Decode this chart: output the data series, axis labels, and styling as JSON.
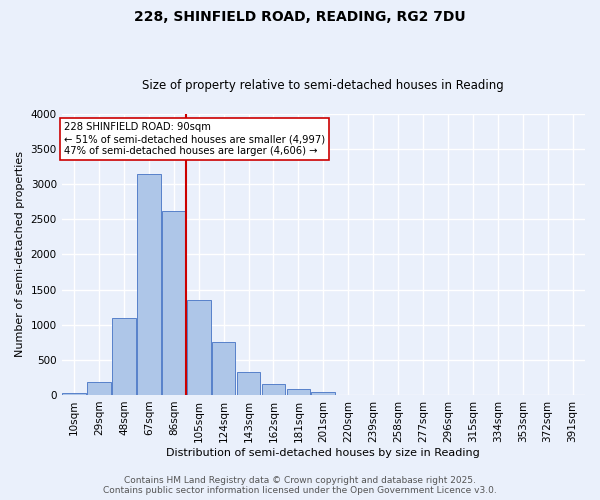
{
  "title1": "228, SHINFIELD ROAD, READING, RG2 7DU",
  "title2": "Size of property relative to semi-detached houses in Reading",
  "xlabel": "Distribution of semi-detached houses by size in Reading",
  "ylabel": "Number of semi-detached properties",
  "bar_labels": [
    "10sqm",
    "29sqm",
    "48sqm",
    "67sqm",
    "86sqm",
    "105sqm",
    "124sqm",
    "143sqm",
    "162sqm",
    "181sqm",
    "201sqm",
    "220sqm",
    "239sqm",
    "258sqm",
    "277sqm",
    "296sqm",
    "315sqm",
    "334sqm",
    "353sqm",
    "372sqm",
    "391sqm"
  ],
  "bar_values": [
    30,
    190,
    1090,
    3150,
    2620,
    1350,
    750,
    320,
    155,
    90,
    45,
    0,
    0,
    0,
    0,
    0,
    0,
    0,
    0,
    0,
    0
  ],
  "bar_color": "#aec6e8",
  "bar_edge_color": "#4472c4",
  "background_color": "#eaf0fb",
  "grid_color": "#ffffff",
  "vline_x": 4.5,
  "vline_color": "#cc0000",
  "annotation_title": "228 SHINFIELD ROAD: 90sqm",
  "annotation_line1": "← 51% of semi-detached houses are smaller (4,997)",
  "annotation_line2": "47% of semi-detached houses are larger (4,606) →",
  "annotation_box_color": "#ffffff",
  "annotation_edge_color": "#cc0000",
  "ylim": [
    0,
    4000
  ],
  "yticks": [
    0,
    500,
    1000,
    1500,
    2000,
    2500,
    3000,
    3500,
    4000
  ],
  "footer1": "Contains HM Land Registry data © Crown copyright and database right 2025.",
  "footer2": "Contains public sector information licensed under the Open Government Licence v3.0.",
  "title1_fontsize": 10,
  "title2_fontsize": 8.5,
  "xlabel_fontsize": 8,
  "ylabel_fontsize": 8,
  "tick_fontsize": 7.5,
  "footer_fontsize": 6.5
}
